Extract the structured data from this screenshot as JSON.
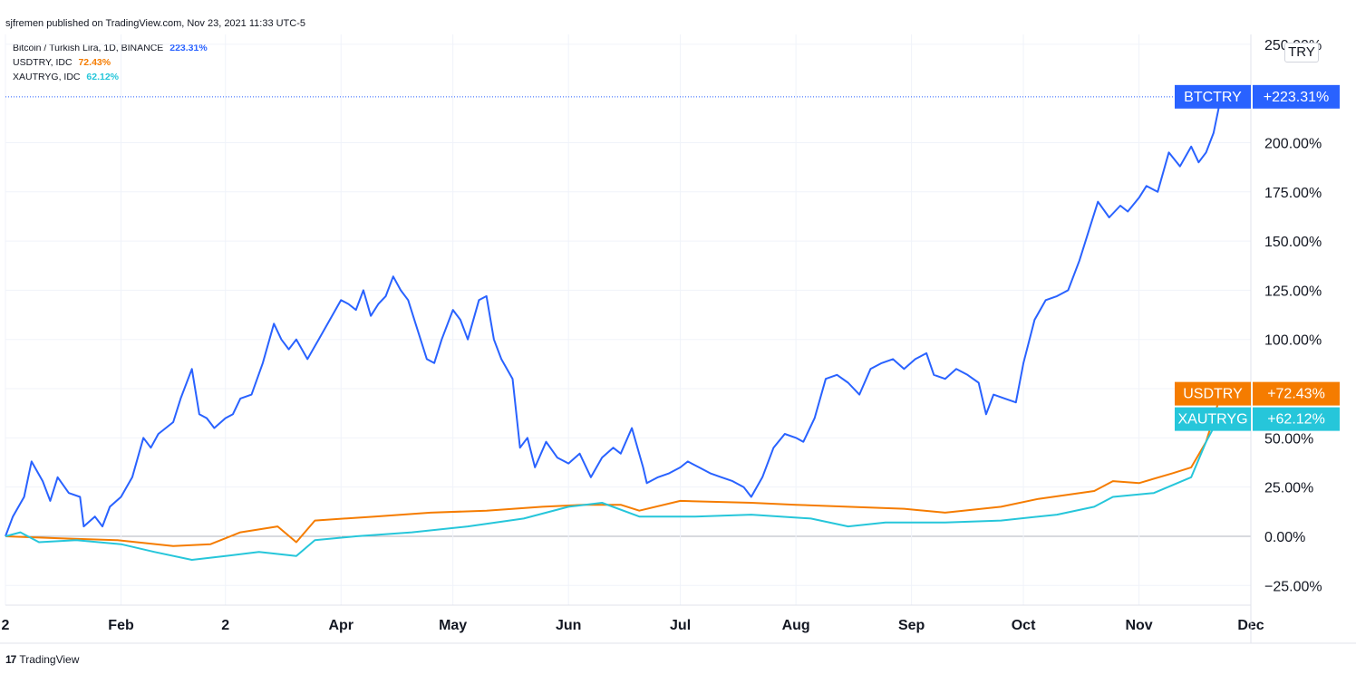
{
  "publisher_line": "sjfremen published on TradingView.com, Nov 23, 2021 11:33 UTC-5",
  "legend": [
    {
      "label": "Bitcoin / Turkish Lira, 1D, BINANCE",
      "value": "223.31%",
      "color": "#2962ff"
    },
    {
      "label": "USDTRY, IDC",
      "value": "72.43%",
      "color": "#f57c00"
    },
    {
      "label": "XAUTRYG, IDC",
      "value": "62.12%",
      "color": "#26c6da"
    }
  ],
  "currency_label": "TRY",
  "footer_brand": "TradingView",
  "footer_logo": "17",
  "colors": {
    "btc": "#2962ff",
    "usd": "#f57c00",
    "xau": "#26c6da",
    "grid": "#f0f3fa",
    "zero": "#b2b5be"
  },
  "chart_data": {
    "type": "line",
    "y_axis": {
      "unit": "%",
      "range": [
        -35,
        255
      ],
      "ticks": [
        {
          "value": -25,
          "label": "−25.00%"
        },
        {
          "value": 0,
          "label": "0.00%"
        },
        {
          "value": 25,
          "label": "25.00%"
        },
        {
          "value": 50,
          "label": "50.00%"
        },
        {
          "value": 75,
          "label": "75.00%"
        },
        {
          "value": 100,
          "label": "100.00%"
        },
        {
          "value": 125,
          "label": "125.00%"
        },
        {
          "value": 150,
          "label": "150.00%"
        },
        {
          "value": 175,
          "label": "175.00%"
        },
        {
          "value": 200,
          "label": "200.00%"
        },
        {
          "value": 250,
          "label": "250.00%"
        }
      ]
    },
    "x_axis": {
      "range": [
        "2021-01-01",
        "2021-12-01"
      ],
      "ticks": [
        {
          "date": "2021-01-01",
          "label": "2"
        },
        {
          "date": "2021-02-01",
          "label": "Feb"
        },
        {
          "date": "2021-03-01",
          "label": "2"
        },
        {
          "date": "2021-04-01",
          "label": "Apr"
        },
        {
          "date": "2021-05-01",
          "label": "May"
        },
        {
          "date": "2021-06-01",
          "label": "Jun"
        },
        {
          "date": "2021-07-01",
          "label": "Jul"
        },
        {
          "date": "2021-08-01",
          "label": "Aug"
        },
        {
          "date": "2021-09-01",
          "label": "Sep"
        },
        {
          "date": "2021-10-01",
          "label": "Oct"
        },
        {
          "date": "2021-11-01",
          "label": "Nov"
        },
        {
          "date": "2021-12-01",
          "label": "Dec"
        }
      ]
    },
    "series": [
      {
        "name": "BTCTRY",
        "badge_value": "+223.31%",
        "color": "#2962ff",
        "points": [
          [
            "2021-01-01",
            0
          ],
          [
            "2021-01-03",
            10
          ],
          [
            "2021-01-06",
            20
          ],
          [
            "2021-01-08",
            38
          ],
          [
            "2021-01-11",
            28
          ],
          [
            "2021-01-13",
            18
          ],
          [
            "2021-01-15",
            30
          ],
          [
            "2021-01-18",
            22
          ],
          [
            "2021-01-21",
            20
          ],
          [
            "2021-01-22",
            5
          ],
          [
            "2021-01-25",
            10
          ],
          [
            "2021-01-27",
            5
          ],
          [
            "2021-01-29",
            15
          ],
          [
            "2021-02-01",
            20
          ],
          [
            "2021-02-04",
            30
          ],
          [
            "2021-02-07",
            50
          ],
          [
            "2021-02-09",
            45
          ],
          [
            "2021-02-11",
            52
          ],
          [
            "2021-02-13",
            55
          ],
          [
            "2021-02-15",
            58
          ],
          [
            "2021-02-17",
            70
          ],
          [
            "2021-02-20",
            85
          ],
          [
            "2021-02-22",
            62
          ],
          [
            "2021-02-24",
            60
          ],
          [
            "2021-02-26",
            55
          ],
          [
            "2021-03-01",
            60
          ],
          [
            "2021-03-03",
            62
          ],
          [
            "2021-03-05",
            70
          ],
          [
            "2021-03-08",
            72
          ],
          [
            "2021-03-11",
            88
          ],
          [
            "2021-03-14",
            108
          ],
          [
            "2021-03-16",
            100
          ],
          [
            "2021-03-18",
            95
          ],
          [
            "2021-03-20",
            100
          ],
          [
            "2021-03-23",
            90
          ],
          [
            "2021-03-26",
            100
          ],
          [
            "2021-03-29",
            110
          ],
          [
            "2021-04-01",
            120
          ],
          [
            "2021-04-03",
            118
          ],
          [
            "2021-04-05",
            115
          ],
          [
            "2021-04-07",
            125
          ],
          [
            "2021-04-09",
            112
          ],
          [
            "2021-04-11",
            118
          ],
          [
            "2021-04-13",
            122
          ],
          [
            "2021-04-15",
            132
          ],
          [
            "2021-04-17",
            125
          ],
          [
            "2021-04-19",
            120
          ],
          [
            "2021-04-21",
            108
          ],
          [
            "2021-04-24",
            90
          ],
          [
            "2021-04-26",
            88
          ],
          [
            "2021-04-28",
            100
          ],
          [
            "2021-05-01",
            115
          ],
          [
            "2021-05-03",
            110
          ],
          [
            "2021-05-05",
            100
          ],
          [
            "2021-05-08",
            120
          ],
          [
            "2021-05-10",
            122
          ],
          [
            "2021-05-12",
            100
          ],
          [
            "2021-05-14",
            90
          ],
          [
            "2021-05-17",
            80
          ],
          [
            "2021-05-19",
            45
          ],
          [
            "2021-05-21",
            50
          ],
          [
            "2021-05-23",
            35
          ],
          [
            "2021-05-26",
            48
          ],
          [
            "2021-05-29",
            40
          ],
          [
            "2021-06-01",
            37
          ],
          [
            "2021-06-04",
            42
          ],
          [
            "2021-06-07",
            30
          ],
          [
            "2021-06-10",
            40
          ],
          [
            "2021-06-13",
            45
          ],
          [
            "2021-06-15",
            42
          ],
          [
            "2021-06-18",
            55
          ],
          [
            "2021-06-21",
            35
          ],
          [
            "2021-06-22",
            27
          ],
          [
            "2021-06-25",
            30
          ],
          [
            "2021-06-28",
            32
          ],
          [
            "2021-07-01",
            35
          ],
          [
            "2021-07-03",
            38
          ],
          [
            "2021-07-06",
            35
          ],
          [
            "2021-07-09",
            32
          ],
          [
            "2021-07-12",
            30
          ],
          [
            "2021-07-15",
            28
          ],
          [
            "2021-07-18",
            25
          ],
          [
            "2021-07-20",
            20
          ],
          [
            "2021-07-23",
            30
          ],
          [
            "2021-07-26",
            45
          ],
          [
            "2021-07-29",
            52
          ],
          [
            "2021-08-01",
            50
          ],
          [
            "2021-08-03",
            48
          ],
          [
            "2021-08-06",
            60
          ],
          [
            "2021-08-09",
            80
          ],
          [
            "2021-08-12",
            82
          ],
          [
            "2021-08-15",
            78
          ],
          [
            "2021-08-18",
            72
          ],
          [
            "2021-08-21",
            85
          ],
          [
            "2021-08-24",
            88
          ],
          [
            "2021-08-27",
            90
          ],
          [
            "2021-08-30",
            85
          ],
          [
            "2021-09-02",
            90
          ],
          [
            "2021-09-05",
            93
          ],
          [
            "2021-09-07",
            82
          ],
          [
            "2021-09-10",
            80
          ],
          [
            "2021-09-13",
            85
          ],
          [
            "2021-09-16",
            82
          ],
          [
            "2021-09-19",
            78
          ],
          [
            "2021-09-21",
            62
          ],
          [
            "2021-09-23",
            72
          ],
          [
            "2021-09-26",
            70
          ],
          [
            "2021-09-29",
            68
          ],
          [
            "2021-10-01",
            88
          ],
          [
            "2021-10-04",
            110
          ],
          [
            "2021-10-07",
            120
          ],
          [
            "2021-10-10",
            122
          ],
          [
            "2021-10-13",
            125
          ],
          [
            "2021-10-16",
            140
          ],
          [
            "2021-10-19",
            158
          ],
          [
            "2021-10-21",
            170
          ],
          [
            "2021-10-24",
            162
          ],
          [
            "2021-10-27",
            168
          ],
          [
            "2021-10-29",
            165
          ],
          [
            "2021-11-01",
            172
          ],
          [
            "2021-11-03",
            178
          ],
          [
            "2021-11-06",
            175
          ],
          [
            "2021-11-09",
            195
          ],
          [
            "2021-11-12",
            188
          ],
          [
            "2021-11-15",
            198
          ],
          [
            "2021-11-17",
            190
          ],
          [
            "2021-11-19",
            195
          ],
          [
            "2021-11-21",
            205
          ],
          [
            "2021-11-23",
            223.31
          ]
        ]
      },
      {
        "name": "USDTRY",
        "badge_value": "+72.43%",
        "color": "#f57c00",
        "points": [
          [
            "2021-01-01",
            0
          ],
          [
            "2021-01-15",
            -1
          ],
          [
            "2021-01-31",
            -2
          ],
          [
            "2021-02-15",
            -5
          ],
          [
            "2021-02-25",
            -4
          ],
          [
            "2021-03-05",
            2
          ],
          [
            "2021-03-15",
            5
          ],
          [
            "2021-03-20",
            -3
          ],
          [
            "2021-03-25",
            8
          ],
          [
            "2021-04-10",
            10
          ],
          [
            "2021-04-25",
            12
          ],
          [
            "2021-05-10",
            13
          ],
          [
            "2021-05-25",
            15
          ],
          [
            "2021-06-05",
            16
          ],
          [
            "2021-06-15",
            16
          ],
          [
            "2021-06-20",
            13
          ],
          [
            "2021-07-01",
            18
          ],
          [
            "2021-07-20",
            17
          ],
          [
            "2021-08-01",
            16
          ],
          [
            "2021-08-15",
            15
          ],
          [
            "2021-08-30",
            14
          ],
          [
            "2021-09-10",
            12
          ],
          [
            "2021-09-25",
            15
          ],
          [
            "2021-10-05",
            19
          ],
          [
            "2021-10-20",
            23
          ],
          [
            "2021-10-25",
            28
          ],
          [
            "2021-11-01",
            27
          ],
          [
            "2021-11-10",
            32
          ],
          [
            "2021-11-15",
            35
          ],
          [
            "2021-11-19",
            48
          ],
          [
            "2021-11-23",
            72.43
          ]
        ]
      },
      {
        "name": "XAUTRYG",
        "badge_value": "+62.12%",
        "color": "#26c6da",
        "points": [
          [
            "2021-01-01",
            0
          ],
          [
            "2021-01-05",
            2
          ],
          [
            "2021-01-10",
            -3
          ],
          [
            "2021-01-20",
            -2
          ],
          [
            "2021-02-01",
            -4
          ],
          [
            "2021-02-10",
            -8
          ],
          [
            "2021-02-20",
            -12
          ],
          [
            "2021-03-01",
            -10
          ],
          [
            "2021-03-10",
            -8
          ],
          [
            "2021-03-20",
            -10
          ],
          [
            "2021-03-25",
            -2
          ],
          [
            "2021-04-05",
            0
          ],
          [
            "2021-04-20",
            2
          ],
          [
            "2021-05-05",
            5
          ],
          [
            "2021-05-20",
            9
          ],
          [
            "2021-06-01",
            15
          ],
          [
            "2021-06-10",
            17
          ],
          [
            "2021-06-20",
            10
          ],
          [
            "2021-07-05",
            10
          ],
          [
            "2021-07-20",
            11
          ],
          [
            "2021-08-05",
            9
          ],
          [
            "2021-08-15",
            5
          ],
          [
            "2021-08-25",
            7
          ],
          [
            "2021-09-10",
            7
          ],
          [
            "2021-09-25",
            8
          ],
          [
            "2021-10-10",
            11
          ],
          [
            "2021-10-20",
            15
          ],
          [
            "2021-10-25",
            20
          ],
          [
            "2021-11-05",
            22
          ],
          [
            "2021-11-15",
            30
          ],
          [
            "2021-11-19",
            48
          ],
          [
            "2021-11-23",
            62.12
          ]
        ]
      }
    ],
    "grid": true,
    "legend_position": "top-left"
  }
}
